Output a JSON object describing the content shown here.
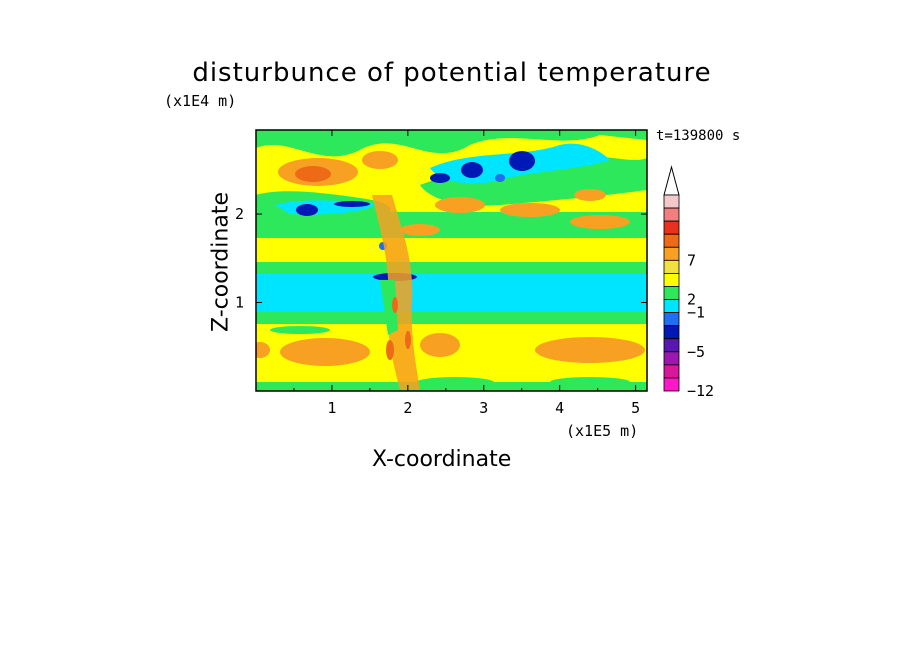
{
  "chart_data": {
    "type": "heatmap",
    "title": "disturbunce of potential temperature",
    "time_label": "t=139800 s",
    "xlabel": "X-coordinate",
    "ylabel": "Z-coordinate",
    "x_scale_label": "(x1E5 m)",
    "y_scale_label": "(x1E4 m)",
    "xlim": [
      0,
      5.15
    ],
    "ylim": [
      0,
      2.95
    ],
    "x_ticks": [
      1,
      2,
      3,
      4,
      5
    ],
    "y_ticks": [
      1,
      2
    ],
    "x_tick_labels": [
      "1",
      "2",
      "3",
      "4",
      "5"
    ],
    "y_tick_labels": [
      "1",
      "2"
    ],
    "colorbar": {
      "tick_labels": [
        "7",
        "2",
        "−1",
        "−5",
        "−12"
      ],
      "tick_levels": [
        5,
        8,
        9,
        12,
        15
      ],
      "colors_top_to_bottom": [
        "#f4c8c8",
        "#f08080",
        "#e8321e",
        "#ef6a17",
        "#f7a021",
        "#f0e040",
        "#ffff00",
        "#2ee85c",
        "#00e5ff",
        "#1f6ff0",
        "#0018b5",
        "#5a16b0",
        "#9818b0",
        "#d8189c",
        "#ff18c8"
      ]
    },
    "field_description": "band layers of warm (yellow/orange) and cool (green/cyan/blue) anomalies",
    "bands": [
      {
        "z_min": 0.0,
        "z_max": 0.1,
        "level": "green"
      },
      {
        "z_min": 0.1,
        "z_max": 0.75,
        "level": "yellow-orange"
      },
      {
        "z_min": 0.75,
        "z_max": 0.9,
        "level": "green"
      },
      {
        "z_min": 0.9,
        "z_max": 1.35,
        "level": "cyan"
      },
      {
        "z_min": 1.35,
        "z_max": 1.5,
        "level": "green"
      },
      {
        "z_min": 1.5,
        "z_max": 1.8,
        "level": "yellow"
      },
      {
        "z_min": 1.8,
        "z_max": 2.0,
        "level": "green-yellow"
      },
      {
        "z_min": 2.0,
        "z_max": 2.95,
        "level": "yellow-orange"
      }
    ]
  }
}
